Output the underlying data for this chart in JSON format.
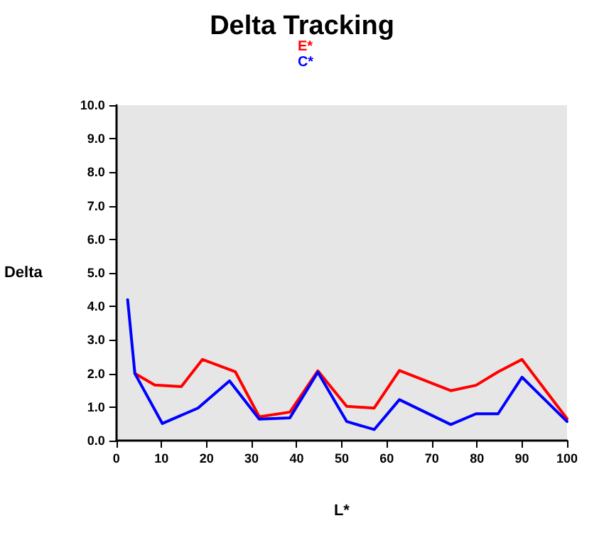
{
  "chart_data": {
    "type": "line",
    "title": "Delta Tracking",
    "xlabel": "L*",
    "ylabel": "Delta",
    "xlim": [
      0,
      100
    ],
    "xticks": [
      0,
      10,
      20,
      30,
      40,
      50,
      60,
      70,
      80,
      90,
      100
    ],
    "ylim": [
      0,
      10
    ],
    "yticks": [
      {
        "value": 0,
        "label": "0.0"
      },
      {
        "value": 1,
        "label": "1.0"
      },
      {
        "value": 2,
        "label": "2.0"
      },
      {
        "value": 3,
        "label": "3.0"
      },
      {
        "value": 4,
        "label": "4.0"
      },
      {
        "value": 5,
        "label": "5.0"
      },
      {
        "value": 6,
        "label": "6.0"
      },
      {
        "value": 7,
        "label": "7.0"
      },
      {
        "value": 8,
        "label": "8.0"
      },
      {
        "value": 9,
        "label": "9.0"
      },
      {
        "value": 10,
        "label": "10.0"
      }
    ],
    "grid": false,
    "legend": "top",
    "marker": "none",
    "line_style": "solid",
    "series": [
      {
        "name": "E*",
        "color": "#ff0000",
        "x": [
          4.1,
          8.5,
          14.4,
          19.1,
          26.4,
          31.7,
          38.5,
          44.7,
          51.1,
          57.2,
          62.8,
          74.2,
          79.8,
          84.7,
          90.0,
          100
        ],
        "values": [
          2.0,
          1.66,
          1.61,
          2.42,
          2.05,
          0.71,
          0.85,
          2.08,
          1.02,
          0.97,
          2.09,
          1.49,
          1.65,
          2.05,
          2.42,
          0.65
        ]
      },
      {
        "name": "C*",
        "color": "#0000ff",
        "x": [
          2.5,
          4.1,
          10.2,
          18.1,
          25.1,
          31.7,
          38.5,
          44.7,
          51.1,
          57.2,
          62.8,
          74.2,
          79.8,
          84.7,
          90.0,
          100
        ],
        "values": [
          4.2,
          2.0,
          0.51,
          0.97,
          1.78,
          0.64,
          0.68,
          2.04,
          0.57,
          0.33,
          1.22,
          0.48,
          0.8,
          0.8,
          1.89,
          0.57
        ]
      }
    ]
  }
}
